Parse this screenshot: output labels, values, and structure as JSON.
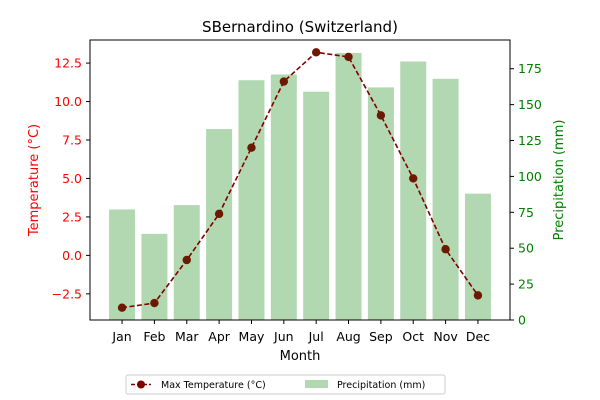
{
  "chart_data": {
    "type": "bar+line",
    "title": "SBernardino (Switzerland)",
    "xlabel": "Month",
    "ylabel_left": "Temperature (°C)",
    "ylabel_right": "Precipitation (mm)",
    "categories": [
      "Jan",
      "Feb",
      "Mar",
      "Apr",
      "May",
      "Jun",
      "Jul",
      "Aug",
      "Sep",
      "Oct",
      "Nov",
      "Dec"
    ],
    "series": [
      {
        "name": "Max Temperature (°C)",
        "type": "line",
        "axis": "left",
        "color": "#800000",
        "values": [
          -3.4,
          -3.1,
          -0.3,
          2.7,
          7.0,
          11.3,
          13.2,
          12.9,
          9.1,
          5.0,
          0.4,
          -2.6
        ]
      },
      {
        "name": "Precipitation (mm)",
        "type": "bar",
        "axis": "right",
        "color": "#b2d8b2",
        "values": [
          77,
          60,
          80,
          133,
          167,
          171,
          159,
          186,
          162,
          180,
          168,
          88
        ]
      }
    ],
    "ylim_left": [
      -4.2,
      14.0
    ],
    "ylim_right": [
      0,
      195
    ],
    "yticks_left": [
      "−2.5",
      "0.0",
      "2.5",
      "5.0",
      "7.5",
      "10.0",
      "12.5"
    ],
    "yticks_left_values": [
      -2.5,
      0,
      2.5,
      5,
      7.5,
      10,
      12.5
    ],
    "yticks_right": [
      "0",
      "25",
      "50",
      "75",
      "100",
      "125",
      "150",
      "175"
    ],
    "yticks_right_values": [
      0,
      25,
      50,
      75,
      100,
      125,
      150,
      175
    ],
    "grid": false,
    "legend_position": "bottom-center",
    "left_axis_color": "#ff0000",
    "right_axis_color": "#008000"
  }
}
